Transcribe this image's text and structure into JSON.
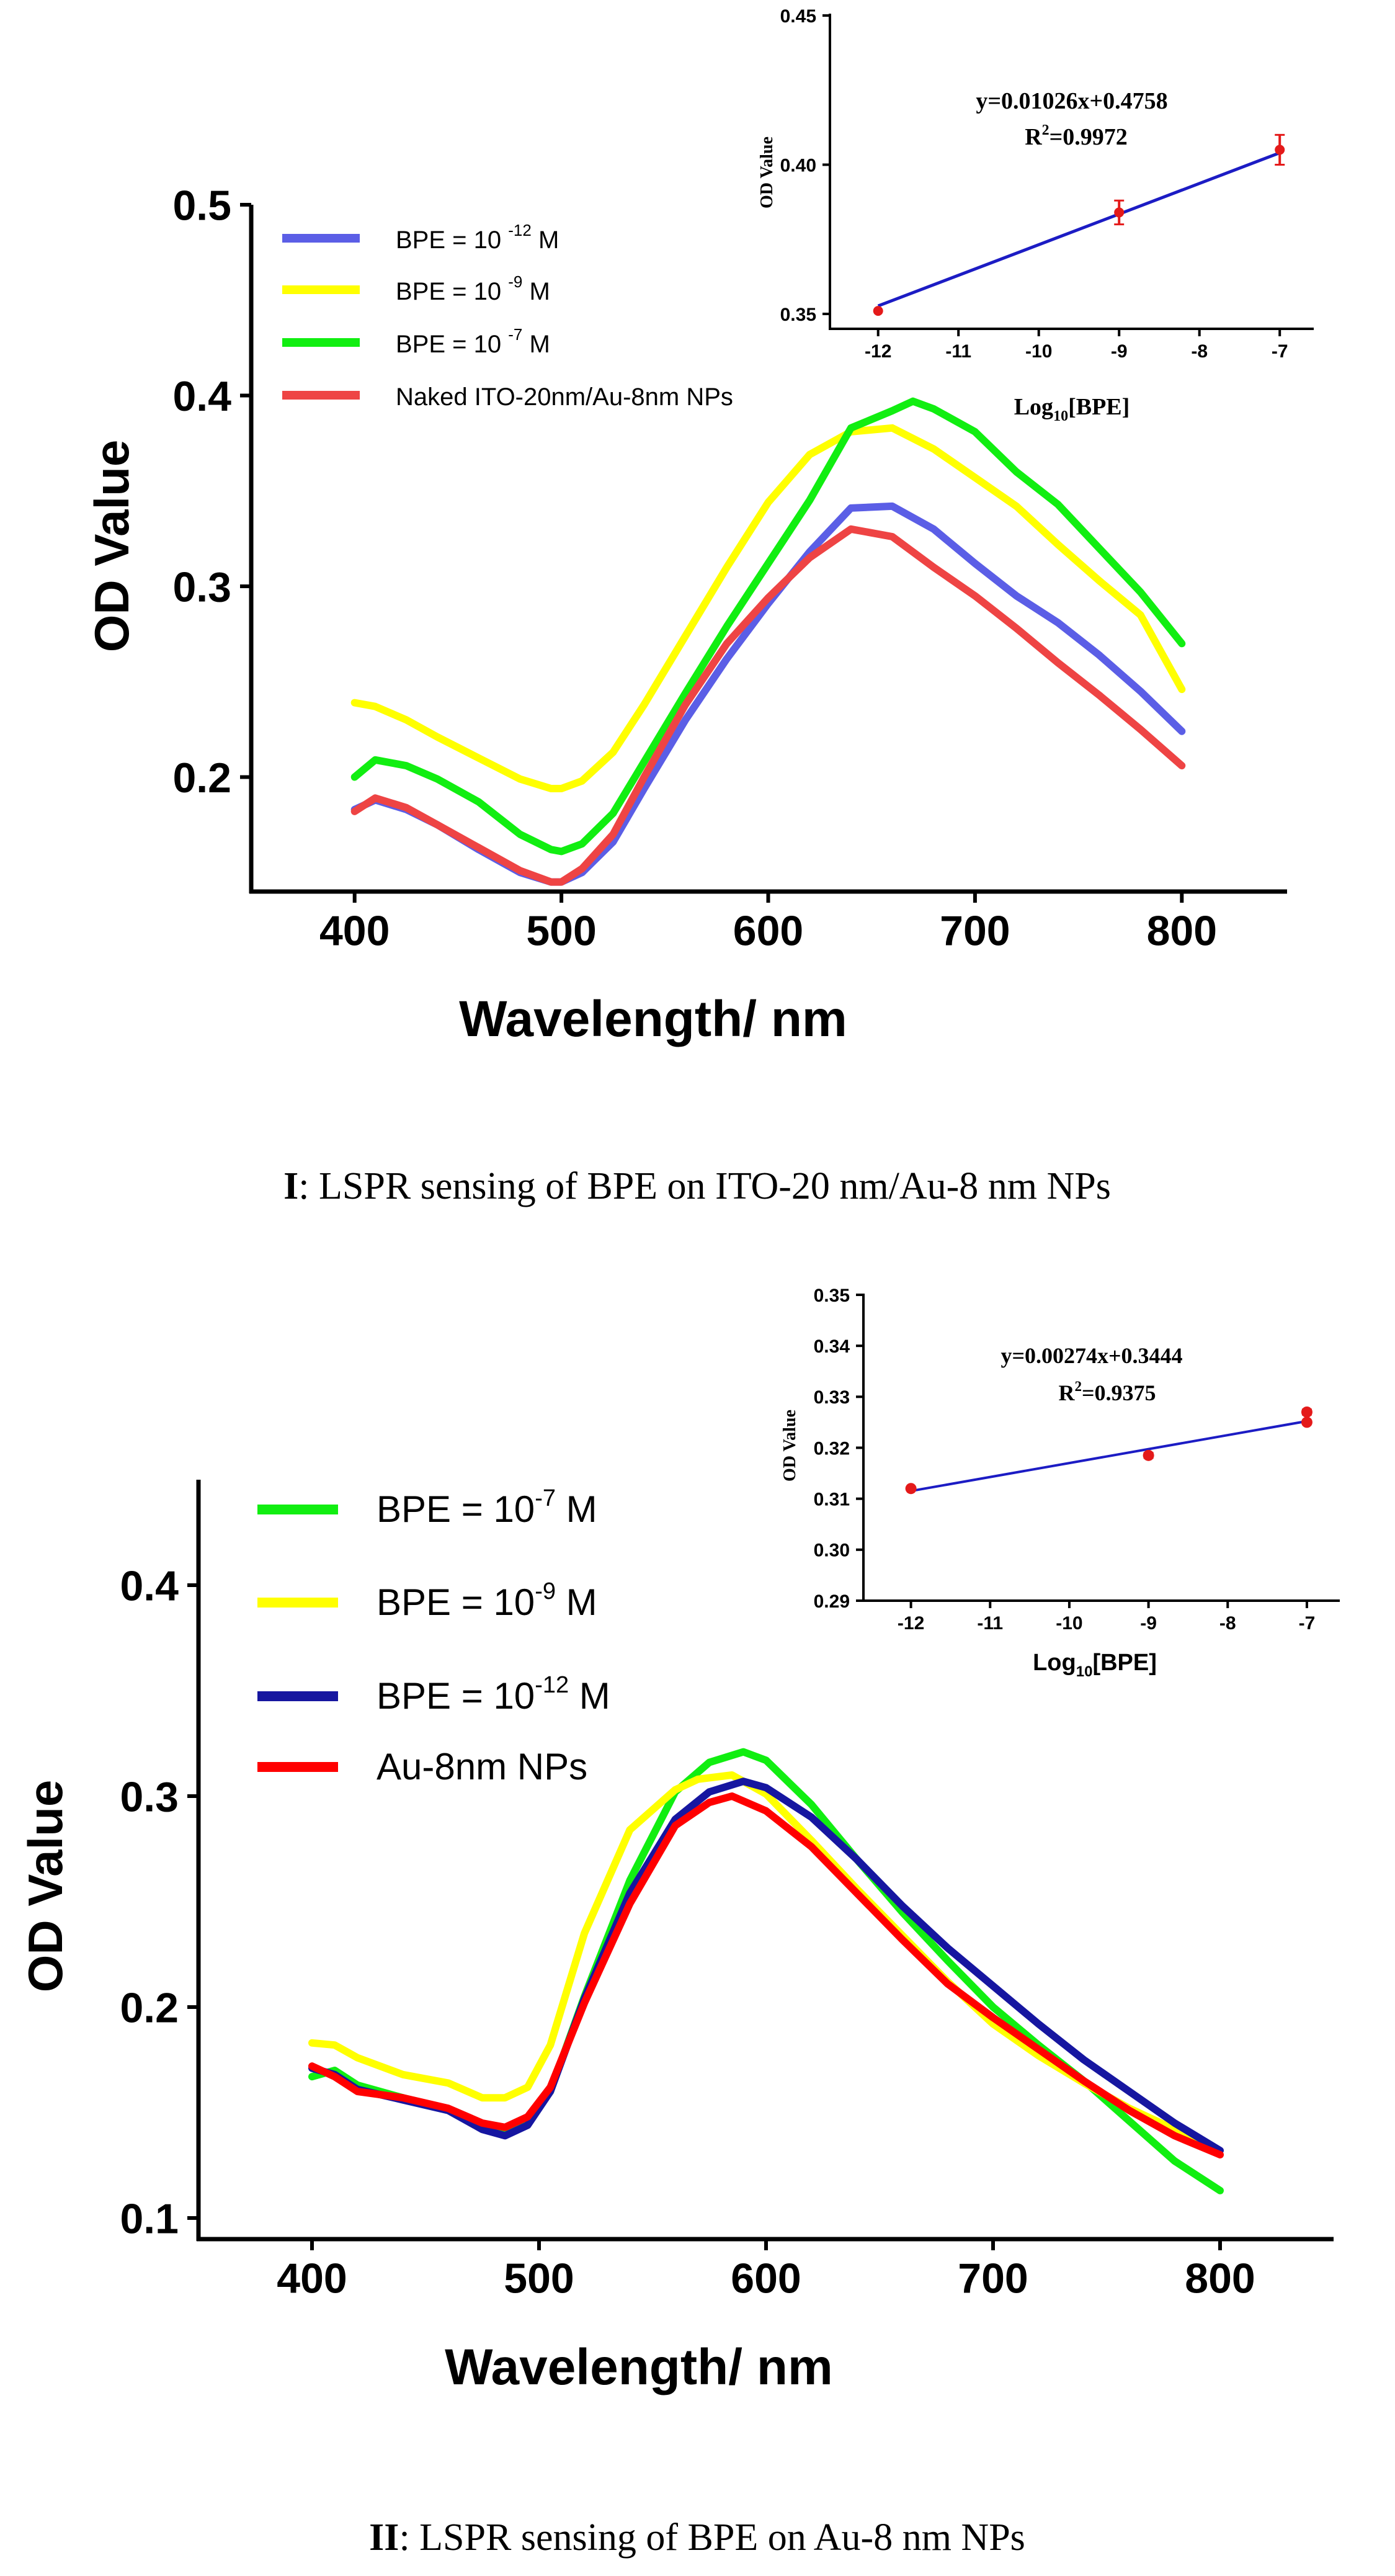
{
  "chart_data": [
    {
      "id": "panel1-main",
      "type": "line",
      "xlabel": "Wavelength/ nm",
      "ylabel": "OD Value",
      "xlim": [
        350,
        850
      ],
      "ylim": [
        0.14,
        0.5
      ],
      "xticks": [
        "400",
        "500",
        "600",
        "700",
        "800"
      ],
      "yticks": [
        "0.2",
        "0.3",
        "0.4",
        "0.5"
      ],
      "legend": "top-left",
      "series": [
        {
          "name": "BPE = 10",
          "exp": "-12",
          "unit": "M",
          "color": "#5b5ee6",
          "x": [
            400,
            410,
            425,
            440,
            460,
            480,
            495,
            500,
            510,
            525,
            540,
            560,
            580,
            600,
            620,
            640,
            660,
            680,
            700,
            720,
            740,
            760,
            780,
            800
          ],
          "y": [
            0.183,
            0.188,
            0.183,
            0.175,
            0.162,
            0.15,
            0.145,
            0.145,
            0.15,
            0.166,
            0.194,
            0.23,
            0.262,
            0.291,
            0.318,
            0.341,
            0.342,
            0.33,
            0.312,
            0.295,
            0.281,
            0.264,
            0.245,
            0.224
          ]
        },
        {
          "name": "BPE = 10",
          "exp": "-9",
          "unit": "M",
          "color": "#ffff00",
          "x": [
            400,
            410,
            425,
            440,
            460,
            480,
            495,
            500,
            510,
            525,
            540,
            560,
            580,
            600,
            620,
            640,
            660,
            680,
            700,
            720,
            740,
            760,
            780,
            800
          ],
          "y": [
            0.239,
            0.237,
            0.23,
            0.221,
            0.21,
            0.199,
            0.194,
            0.194,
            0.198,
            0.213,
            0.238,
            0.274,
            0.31,
            0.344,
            0.369,
            0.381,
            0.383,
            0.372,
            0.357,
            0.342,
            0.322,
            0.303,
            0.285,
            0.246
          ]
        },
        {
          "name": "BPE = 10",
          "exp": "-7",
          "unit": "M",
          "color": "#11ee11",
          "x": [
            400,
            410,
            425,
            440,
            460,
            480,
            495,
            500,
            510,
            525,
            540,
            560,
            580,
            600,
            620,
            640,
            660,
            670,
            680,
            700,
            720,
            740,
            760,
            780,
            800
          ],
          "y": [
            0.2,
            0.209,
            0.206,
            0.199,
            0.187,
            0.17,
            0.162,
            0.161,
            0.165,
            0.181,
            0.208,
            0.244,
            0.279,
            0.312,
            0.345,
            0.383,
            0.392,
            0.397,
            0.393,
            0.381,
            0.36,
            0.343,
            0.32,
            0.297,
            0.27
          ]
        },
        {
          "name": "Naked ITO-20nm/Au-8nm NPs",
          "exp": "",
          "unit": "",
          "color": "#ee4444",
          "x": [
            400,
            410,
            425,
            440,
            460,
            480,
            495,
            500,
            510,
            525,
            540,
            560,
            580,
            600,
            620,
            640,
            660,
            680,
            700,
            720,
            740,
            760,
            780,
            800
          ],
          "y": [
            0.182,
            0.189,
            0.184,
            0.175,
            0.163,
            0.151,
            0.145,
            0.145,
            0.152,
            0.17,
            0.2,
            0.238,
            0.27,
            0.294,
            0.315,
            0.33,
            0.326,
            0.31,
            0.295,
            0.278,
            0.26,
            0.243,
            0.225,
            0.206
          ]
        }
      ]
    },
    {
      "id": "panel1-inset",
      "type": "scatter",
      "xlabel": "Log",
      "xlabel_sub": "10",
      "xlabel_tail": "[BPE]",
      "ylabel": "OD Value",
      "xlim": [
        -12.6,
        -6.6
      ],
      "ylim": [
        0.345,
        0.45
      ],
      "xticks": [
        "-12",
        "-11",
        "-10",
        "-9",
        "-8",
        "-7"
      ],
      "yticks": [
        "0.35",
        "0.40",
        "0.45"
      ],
      "equation": "y=0.01026x+0.4758",
      "r2_label": "R",
      "r2_sup": "2",
      "r2_value": "=0.9972",
      "fit": {
        "slope": 0.01026,
        "intercept": 0.4758,
        "x_range": [
          -12,
          -7
        ]
      },
      "points": {
        "x": [
          -12,
          -9,
          -7
        ],
        "y": [
          0.351,
          0.384,
          0.405
        ],
        "yerr": [
          0.0,
          0.004,
          0.005
        ]
      }
    },
    {
      "id": "panel2-main",
      "type": "line",
      "xlabel": "Wavelength/ nm",
      "ylabel": "OD Value",
      "xlim": [
        350,
        850
      ],
      "ylim": [
        0.09,
        0.45
      ],
      "xticks": [
        "400",
        "500",
        "600",
        "700",
        "800"
      ],
      "yticks": [
        "0.1",
        "0.2",
        "0.3",
        "0.4"
      ],
      "legend": "top-left",
      "series": [
        {
          "name": "BPE = 10",
          "exp": "-7",
          "unit": "M",
          "color": "#11ee11",
          "x": [
            400,
            410,
            420,
            440,
            460,
            475,
            485,
            495,
            505,
            520,
            540,
            560,
            575,
            590,
            600,
            620,
            640,
            660,
            680,
            700,
            720,
            740,
            760,
            780,
            800
          ],
          "y": [
            0.167,
            0.17,
            0.163,
            0.157,
            0.151,
            0.143,
            0.141,
            0.145,
            0.16,
            0.205,
            0.26,
            0.302,
            0.316,
            0.321,
            0.317,
            0.296,
            0.27,
            0.245,
            0.222,
            0.2,
            0.182,
            0.165,
            0.146,
            0.127,
            0.113
          ]
        },
        {
          "name": "BPE = 10",
          "exp": "-9",
          "unit": "M",
          "color": "#ffff00",
          "x": [
            400,
            410,
            420,
            440,
            460,
            475,
            485,
            495,
            505,
            520,
            540,
            560,
            570,
            585,
            600,
            620,
            640,
            660,
            680,
            700,
            720,
            740,
            760,
            780,
            800
          ],
          "y": [
            0.183,
            0.182,
            0.176,
            0.168,
            0.164,
            0.157,
            0.157,
            0.162,
            0.182,
            0.235,
            0.284,
            0.303,
            0.308,
            0.31,
            0.301,
            0.279,
            0.256,
            0.234,
            0.212,
            0.192,
            0.177,
            0.164,
            0.152,
            0.142,
            0.13
          ]
        },
        {
          "name": "BPE = 10",
          "exp": "-12",
          "unit": "M",
          "color": "#1616a0",
          "x": [
            400,
            410,
            420,
            440,
            460,
            475,
            485,
            495,
            505,
            520,
            540,
            560,
            575,
            590,
            600,
            620,
            640,
            660,
            680,
            700,
            720,
            740,
            760,
            780,
            800
          ],
          "y": [
            0.171,
            0.168,
            0.161,
            0.156,
            0.151,
            0.142,
            0.139,
            0.144,
            0.16,
            0.204,
            0.254,
            0.289,
            0.302,
            0.307,
            0.304,
            0.29,
            0.27,
            0.248,
            0.228,
            0.21,
            0.192,
            0.175,
            0.16,
            0.145,
            0.132
          ]
        },
        {
          "name": "Au-8nm NPs",
          "exp": "",
          "unit": "",
          "color": "#ff0000",
          "x": [
            400,
            410,
            420,
            440,
            460,
            475,
            485,
            495,
            505,
            520,
            540,
            560,
            575,
            585,
            600,
            620,
            640,
            660,
            680,
            700,
            720,
            740,
            760,
            780,
            800
          ],
          "y": [
            0.172,
            0.167,
            0.16,
            0.157,
            0.152,
            0.145,
            0.143,
            0.148,
            0.162,
            0.202,
            0.249,
            0.286,
            0.297,
            0.3,
            0.293,
            0.276,
            0.254,
            0.232,
            0.211,
            0.195,
            0.18,
            0.165,
            0.151,
            0.139,
            0.13
          ]
        }
      ]
    },
    {
      "id": "panel2-inset",
      "type": "scatter",
      "xlabel": "Log",
      "xlabel_sub": "10",
      "xlabel_tail": "[BPE]",
      "ylabel": "OD Value",
      "xlim": [
        -12.6,
        -6.6
      ],
      "ylim": [
        0.29,
        0.35
      ],
      "xticks": [
        "-12",
        "-11",
        "-10",
        "-9",
        "-8",
        "-7"
      ],
      "yticks": [
        "0.29",
        "0.30",
        "0.31",
        "0.32",
        "0.33",
        "0.34",
        "0.35"
      ],
      "equation": "y=0.00274x+0.3444",
      "r2_label": "R",
      "r2_sup": "2",
      "r2_value": "=0.9375",
      "fit": {
        "slope": 0.00274,
        "intercept": 0.3444,
        "x_range": [
          -12,
          -7
        ]
      },
      "points": {
        "x": [
          -12,
          -9,
          -7,
          -7
        ],
        "y": [
          0.312,
          0.3185,
          0.325,
          0.327
        ],
        "yerr": [
          0.0,
          0.0005,
          0.0,
          0.0005
        ]
      }
    }
  ],
  "captions": [
    {
      "label": "I",
      "text": ": LSPR sensing of BPE on ITO-20 nm/Au-8 nm NPs"
    },
    {
      "label": "II",
      "text": ": LSPR sensing of BPE on Au-8 nm NPs"
    }
  ]
}
